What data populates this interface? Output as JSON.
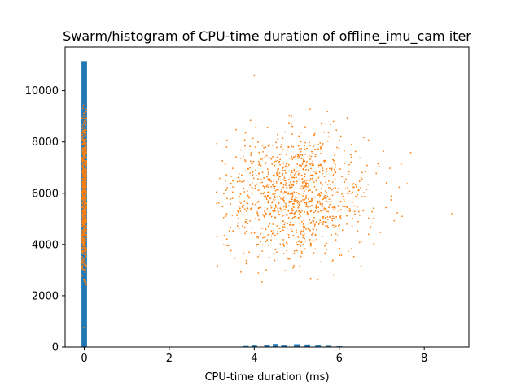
{
  "chart_data": {
    "type": "scatter",
    "title": "Swarm/histogram of CPU-time duration of offline_imu_cam iter",
    "xlabel": "CPU-time duration (ms)",
    "ylabel": "",
    "xlim": [
      -0.45,
      9.05
    ],
    "ylim": [
      0,
      11700
    ],
    "x_ticks": [
      "0",
      "2",
      "4",
      "6",
      "8"
    ],
    "y_ticks": [
      "0",
      "2000",
      "4000",
      "6000",
      "8000",
      "10000"
    ],
    "grid": false,
    "colors": {
      "histogram": "#1f77b4",
      "swarm": "#ff7f0e"
    },
    "histogram": {
      "bin_width": 0.13,
      "bins": [
        {
          "x": 0.0,
          "count": 11150
        },
        {
          "x": 3.8,
          "count": 40
        },
        {
          "x": 4.0,
          "count": 60
        },
        {
          "x": 4.3,
          "count": 80
        },
        {
          "x": 4.5,
          "count": 120
        },
        {
          "x": 4.7,
          "count": 60
        },
        {
          "x": 5.0,
          "count": 110
        },
        {
          "x": 5.25,
          "count": 100
        },
        {
          "x": 5.5,
          "count": 60
        },
        {
          "x": 5.75,
          "count": 50
        },
        {
          "x": 6.0,
          "count": 30
        }
      ]
    },
    "swarm": {
      "cluster_near_zero": {
        "x_center": 0.0,
        "x_spread": 0.05,
        "y_min": 2300,
        "y_max": 9700,
        "y_mean": 6000,
        "y_sd": 1600
      },
      "cluster_main": {
        "x_mean": 5.0,
        "x_sd": 0.85,
        "y_mean": 5900,
        "y_sd": 1200
      },
      "outliers": [
        {
          "x": 4.0,
          "y": 10600
        },
        {
          "x": 8.65,
          "y": 5200
        },
        {
          "x": 4.35,
          "y": 2100
        },
        {
          "x": 0.0,
          "y": 750
        }
      ]
    }
  }
}
